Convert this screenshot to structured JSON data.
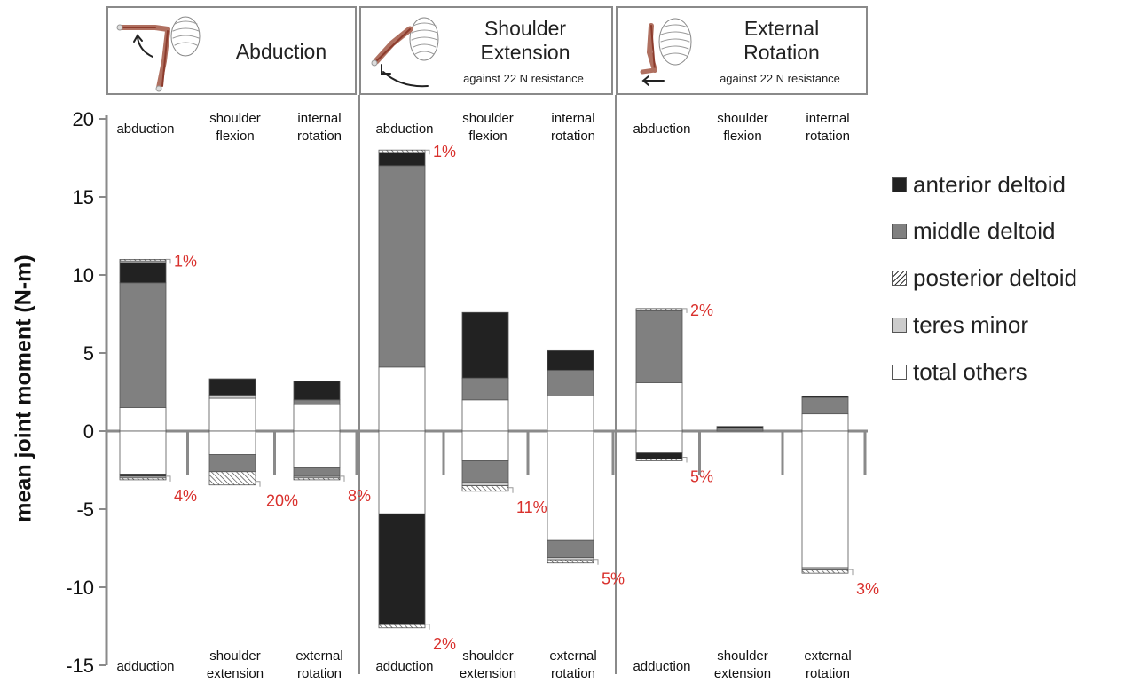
{
  "chart_data": {
    "type": "bar",
    "stacked": true,
    "ylabel": "mean joint moment (N-m)",
    "ylim": [
      -15,
      20
    ],
    "yticks": [
      "20",
      "15",
      "10",
      "5",
      "0",
      "-5",
      "-10",
      "-15"
    ],
    "legend_position": "right",
    "legend": [
      {
        "name": "anterior deltoid",
        "color": "#222222",
        "pattern": "solid"
      },
      {
        "name": "middle deltoid",
        "color": "#808080",
        "pattern": "solid"
      },
      {
        "name": "posterior deltoid",
        "color": "#ffffff",
        "pattern": "hatch"
      },
      {
        "name": "teres minor",
        "color": "#cccccc",
        "pattern": "solid"
      },
      {
        "name": "total others",
        "color": "#ffffff",
        "pattern": "solid"
      }
    ],
    "panels": [
      {
        "title": "Abduction",
        "subtitle": "",
        "groups": [
          {
            "top_label": "abduction",
            "bottom_label": "adduction",
            "positive": [
              {
                "series": "total others",
                "value": 1.5
              },
              {
                "series": "middle deltoid",
                "value": 8.0
              },
              {
                "series": "anterior deltoid",
                "value": 1.3
              },
              {
                "series": "teres minor",
                "value": 0.1
              },
              {
                "series": "posterior deltoid",
                "value": 0.1
              }
            ],
            "negative": [
              {
                "series": "total others",
                "value": 2.75
              },
              {
                "series": "anterior deltoid",
                "value": 0.15
              },
              {
                "series": "teres minor",
                "value": 0.1
              },
              {
                "series": "posterior deltoid",
                "value": 0.12
              }
            ],
            "pos_pct": "1%",
            "neg_pct": "4%"
          },
          {
            "top_label": "shoulder flexion",
            "bottom_label": "shoulder extension",
            "positive": [
              {
                "series": "total others",
                "value": 2.1
              },
              {
                "series": "teres minor",
                "value": 0.2
              },
              {
                "series": "anterior deltoid",
                "value": 1.05
              }
            ],
            "negative": [
              {
                "series": "total others",
                "value": 1.5
              },
              {
                "series": "middle deltoid",
                "value": 1.1
              },
              {
                "series": "posterior deltoid",
                "value": 0.85
              }
            ],
            "pos_pct": "",
            "neg_pct": "20%"
          },
          {
            "top_label": "internal rotation",
            "bottom_label": "external rotation",
            "positive": [
              {
                "series": "total others",
                "value": 1.7
              },
              {
                "series": "middle deltoid",
                "value": 0.3
              },
              {
                "series": "anterior deltoid",
                "value": 1.2
              }
            ],
            "negative": [
              {
                "series": "total others",
                "value": 2.35
              },
              {
                "series": "middle deltoid",
                "value": 0.55
              },
              {
                "series": "teres minor",
                "value": 0.1
              },
              {
                "series": "posterior deltoid",
                "value": 0.12
              }
            ],
            "pos_pct": "",
            "neg_pct": "8%"
          }
        ]
      },
      {
        "title": "Shoulder Extension",
        "subtitle": "against 22 N resistance",
        "groups": [
          {
            "top_label": "abduction",
            "bottom_label": "adduction",
            "positive": [
              {
                "series": "total others",
                "value": 4.1
              },
              {
                "series": "middle deltoid",
                "value": 12.9
              },
              {
                "series": "anterior deltoid",
                "value": 0.85
              },
              {
                "series": "posterior deltoid",
                "value": 0.15
              }
            ],
            "negative": [
              {
                "series": "total others",
                "value": 5.3
              },
              {
                "series": "anterior deltoid",
                "value": 7.1
              },
              {
                "series": "posterior deltoid",
                "value": 0.2
              }
            ],
            "pos_pct": "1%",
            "neg_pct": "2%"
          },
          {
            "top_label": "shoulder flexion",
            "bottom_label": "shoulder extension",
            "positive": [
              {
                "series": "total others",
                "value": 2.0
              },
              {
                "series": "middle deltoid",
                "value": 1.4
              },
              {
                "series": "anterior deltoid",
                "value": 4.2
              }
            ],
            "negative": [
              {
                "series": "total others",
                "value": 1.9
              },
              {
                "series": "middle deltoid",
                "value": 1.4
              },
              {
                "series": "teres minor",
                "value": 0.2
              },
              {
                "series": "posterior deltoid",
                "value": 0.35
              }
            ],
            "pos_pct": "",
            "neg_pct": "11%"
          },
          {
            "top_label": "internal rotation",
            "bottom_label": "external rotation",
            "positive": [
              {
                "series": "total others",
                "value": 2.25
              },
              {
                "series": "middle deltoid",
                "value": 1.65
              },
              {
                "series": "anterior deltoid",
                "value": 1.25
              }
            ],
            "negative": [
              {
                "series": "total others",
                "value": 7.0
              },
              {
                "series": "middle deltoid",
                "value": 1.1
              },
              {
                "series": "teres minor",
                "value": 0.15
              },
              {
                "series": "posterior deltoid",
                "value": 0.2
              }
            ],
            "pos_pct": "",
            "neg_pct": "5%"
          }
        ]
      },
      {
        "title": "External Rotation",
        "subtitle": "against 22 N resistance",
        "groups": [
          {
            "top_label": "abduction",
            "bottom_label": "adduction",
            "positive": [
              {
                "series": "total others",
                "value": 3.1
              },
              {
                "series": "middle deltoid",
                "value": 4.6
              },
              {
                "series": "teres minor",
                "value": 0.05
              },
              {
                "series": "posterior deltoid",
                "value": 0.1
              }
            ],
            "negative": [
              {
                "series": "total others",
                "value": 1.4
              },
              {
                "series": "anterior deltoid",
                "value": 0.4
              },
              {
                "series": "posterior deltoid",
                "value": 0.1
              }
            ],
            "pos_pct": "2%",
            "neg_pct": "5%"
          },
          {
            "top_label": "shoulder flexion",
            "bottom_label": "shoulder extension",
            "positive": [
              {
                "series": "middle deltoid",
                "value": 0.2
              },
              {
                "series": "anterior deltoid",
                "value": 0.1
              }
            ],
            "negative": [],
            "pos_pct": "",
            "neg_pct": ""
          },
          {
            "top_label": "internal rotation",
            "bottom_label": "external rotation",
            "positive": [
              {
                "series": "total others",
                "value": 1.1
              },
              {
                "series": "middle deltoid",
                "value": 1.05
              },
              {
                "series": "anterior deltoid",
                "value": 0.1
              }
            ],
            "negative": [
              {
                "series": "total others",
                "value": 8.75
              },
              {
                "series": "teres minor",
                "value": 0.15
              },
              {
                "series": "posterior deltoid",
                "value": 0.2
              }
            ],
            "pos_pct": "",
            "neg_pct": "3%"
          }
        ]
      }
    ]
  }
}
